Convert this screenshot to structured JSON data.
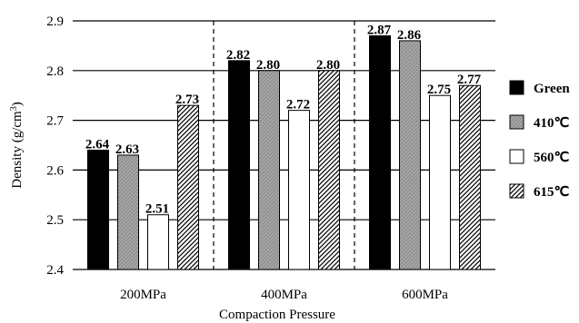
{
  "chart_data": {
    "type": "bar",
    "categories": [
      "200MPa",
      "400MPa",
      "600MPa"
    ],
    "series": [
      {
        "name": "Green",
        "values": [
          2.64,
          2.82,
          2.87
        ],
        "labels": [
          "2.64",
          "2.82",
          "2.87"
        ],
        "fill": "black"
      },
      {
        "name": "410℃",
        "values": [
          2.63,
          2.8,
          2.86
        ],
        "labels": [
          "2.63",
          "2.80",
          "2.86"
        ],
        "fill": "gray"
      },
      {
        "name": "560℃",
        "values": [
          2.51,
          2.72,
          2.75
        ],
        "labels": [
          "2.51",
          "2.72",
          "2.75"
        ],
        "fill": "white"
      },
      {
        "name": "615℃",
        "values": [
          2.73,
          2.8,
          2.77
        ],
        "labels": [
          "2.73",
          "2.80",
          "2.77"
        ],
        "fill": "hatch"
      }
    ],
    "yticks": [
      "2.4",
      "2.5",
      "2.6",
      "2.7",
      "2.8",
      "2.9"
    ],
    "ylim": [
      2.4,
      2.9
    ],
    "xlabel": "Compaction Pressure",
    "ylabel_main": "Density (g/cm",
    "ylabel_sup": "3",
    "ylabel_end": ")",
    "grid": true,
    "legend_position": "right",
    "colors": {
      "green": "#000000",
      "gray": "#a6a6a6",
      "white": "#ffffff",
      "hatch_line": "#000000"
    }
  }
}
